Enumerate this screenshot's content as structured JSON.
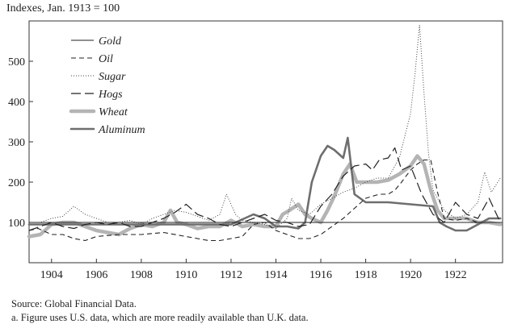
{
  "chart_data": {
    "type": "line",
    "ylabel": "Indexes, Jan. 1913 = 100",
    "xlim": [
      1903.0,
      1924.1
    ],
    "ylim": [
      0,
      600
    ],
    "xticks": [
      1904,
      1906,
      1908,
      1910,
      1912,
      1914,
      1916,
      1918,
      1920,
      1922
    ],
    "yticks": [
      100,
      200,
      300,
      400,
      500
    ],
    "reference_line": 100,
    "legend_position": "top-left",
    "series": [
      {
        "name": "Gold",
        "style": "solid-thin",
        "color": "#222222",
        "x": [
          1903.0,
          1903.5,
          1904.0,
          1905.0,
          1906.0,
          1907.0,
          1908.0,
          1909.0,
          1910.0,
          1911.0,
          1912.0,
          1913.0,
          1914.0,
          1915.0,
          1916.0,
          1917.0,
          1918.0,
          1919.0,
          1920.0,
          1920.5,
          1921.0,
          1921.5,
          1922.0,
          1923.0,
          1924.0
        ],
        "y": [
          100,
          100,
          100,
          100,
          100,
          100,
          100,
          100,
          100,
          100,
          100,
          100,
          100,
          100,
          100,
          100,
          100,
          100,
          100,
          100,
          100,
          100,
          100,
          100,
          100
        ]
      },
      {
        "name": "Oil",
        "style": "dashed",
        "color": "#222222",
        "x": [
          1903.0,
          1903.4,
          1904.0,
          1904.5,
          1905.0,
          1905.5,
          1906.0,
          1907.0,
          1908.0,
          1909.0,
          1910.0,
          1910.5,
          1911.0,
          1911.5,
          1912.0,
          1912.5,
          1913.0,
          1913.5,
          1914.0,
          1914.5,
          1915.0,
          1915.5,
          1916.0,
          1916.5,
          1917.0,
          1917.5,
          1918.0,
          1918.3,
          1918.6,
          1919.0,
          1919.3,
          1919.6,
          1920.0,
          1920.3,
          1920.6,
          1920.9,
          1921.2,
          1921.5,
          1922.0,
          1922.5,
          1923.0,
          1923.5,
          1924.0
        ],
        "y": [
          80,
          85,
          70,
          70,
          60,
          55,
          65,
          70,
          70,
          75,
          65,
          60,
          55,
          55,
          60,
          65,
          95,
          100,
          80,
          70,
          60,
          60,
          70,
          90,
          110,
          135,
          160,
          165,
          170,
          170,
          180,
          200,
          230,
          245,
          255,
          255,
          175,
          110,
          105,
          110,
          100,
          100,
          100
        ]
      },
      {
        "name": "Sugar",
        "style": "dotted",
        "color": "#444444",
        "x": [
          1903.0,
          1903.5,
          1904.0,
          1904.5,
          1905.0,
          1905.5,
          1906.0,
          1906.5,
          1907.0,
          1907.5,
          1908.0,
          1908.5,
          1909.0,
          1909.5,
          1910.0,
          1910.5,
          1911.0,
          1911.5,
          1911.8,
          1912.2,
          1912.5,
          1913.0,
          1913.5,
          1914.0,
          1914.5,
          1914.7,
          1915.0,
          1915.5,
          1916.0,
          1916.5,
          1917.0,
          1917.5,
          1918.0,
          1918.5,
          1919.0,
          1919.5,
          1920.0,
          1920.2,
          1920.4,
          1920.6,
          1920.8,
          1921.0,
          1921.5,
          1922.0,
          1922.5,
          1923.0,
          1923.3,
          1923.6,
          1924.0
        ],
        "y": [
          100,
          100,
          110,
          115,
          140,
          120,
          110,
          100,
          100,
          105,
          95,
          110,
          120,
          130,
          125,
          115,
          105,
          120,
          170,
          120,
          105,
          100,
          95,
          85,
          110,
          160,
          130,
          120,
          145,
          160,
          175,
          185,
          200,
          210,
          210,
          260,
          370,
          470,
          590,
          420,
          270,
          180,
          130,
          110,
          120,
          150,
          225,
          175,
          210
        ]
      },
      {
        "name": "Hogs",
        "style": "long-dash",
        "color": "#222222",
        "x": [
          1903.0,
          1903.5,
          1904.0,
          1904.5,
          1905.0,
          1905.5,
          1906.0,
          1906.5,
          1907.0,
          1907.5,
          1908.0,
          1908.5,
          1909.0,
          1909.5,
          1910.0,
          1910.5,
          1911.0,
          1911.5,
          1912.0,
          1912.5,
          1913.0,
          1913.5,
          1914.0,
          1914.5,
          1915.0,
          1915.5,
          1916.0,
          1916.5,
          1917.0,
          1917.5,
          1918.0,
          1918.3,
          1918.6,
          1919.0,
          1919.3,
          1919.6,
          1920.0,
          1920.5,
          1921.0,
          1921.5,
          1922.0,
          1922.5,
          1923.0,
          1923.5,
          1924.0
        ],
        "y": [
          80,
          90,
          100,
          90,
          85,
          95,
          100,
          95,
          100,
          90,
          90,
          100,
          110,
          125,
          145,
          120,
          110,
          95,
          90,
          100,
          110,
          120,
          105,
          100,
          90,
          95,
          140,
          170,
          215,
          240,
          245,
          230,
          255,
          260,
          285,
          230,
          240,
          170,
          120,
          100,
          150,
          120,
          110,
          160,
          100
        ]
      },
      {
        "name": "Wheat",
        "style": "thick-gray",
        "color": "#b4b4b4",
        "x": [
          1903.0,
          1903.5,
          1904.0,
          1904.5,
          1905.0,
          1905.5,
          1906.0,
          1906.5,
          1907.0,
          1907.5,
          1908.0,
          1908.5,
          1909.0,
          1909.3,
          1909.6,
          1910.0,
          1910.5,
          1911.0,
          1911.5,
          1912.0,
          1912.5,
          1913.0,
          1913.5,
          1914.0,
          1914.3,
          1914.6,
          1915.0,
          1915.3,
          1915.6,
          1916.0,
          1916.3,
          1916.6,
          1917.0,
          1917.3,
          1917.6,
          1918.0,
          1918.5,
          1919.0,
          1919.5,
          1920.0,
          1920.3,
          1920.6,
          1920.9,
          1921.2,
          1921.5,
          1922.0,
          1922.5,
          1923.0,
          1923.5,
          1924.0
        ],
        "y": [
          65,
          70,
          95,
          100,
          100,
          90,
          80,
          75,
          70,
          85,
          95,
          90,
          100,
          130,
          100,
          95,
          85,
          90,
          90,
          105,
          90,
          95,
          90,
          90,
          120,
          130,
          145,
          120,
          110,
          100,
          130,
          165,
          220,
          245,
          200,
          200,
          200,
          205,
          220,
          240,
          265,
          245,
          180,
          130,
          110,
          110,
          110,
          100,
          100,
          95
        ]
      },
      {
        "name": "Aluminum",
        "style": "solid-thick-dark",
        "color": "#6e6e6e",
        "x": [
          1903.0,
          1904.0,
          1905.0,
          1906.0,
          1907.0,
          1908.0,
          1909.0,
          1910.0,
          1911.0,
          1912.0,
          1913.0,
          1913.5,
          1914.0,
          1914.5,
          1915.0,
          1915.3,
          1915.6,
          1916.0,
          1916.3,
          1916.6,
          1917.0,
          1917.2,
          1917.5,
          1918.0,
          1919.0,
          1920.0,
          1921.0,
          1921.3,
          1921.6,
          1922.0,
          1922.5,
          1923.0,
          1923.5,
          1924.0
        ],
        "y": [
          95,
          95,
          95,
          95,
          95,
          95,
          95,
          95,
          95,
          95,
          120,
          110,
          90,
          90,
          85,
          100,
          200,
          265,
          290,
          280,
          260,
          310,
          170,
          150,
          150,
          145,
          140,
          100,
          90,
          80,
          80,
          95,
          110,
          110
        ]
      }
    ]
  },
  "source_note": "Source: Global Financial Data.",
  "footnote": "a. Figure uses U.S. data, which are more readily available than U.K. data."
}
